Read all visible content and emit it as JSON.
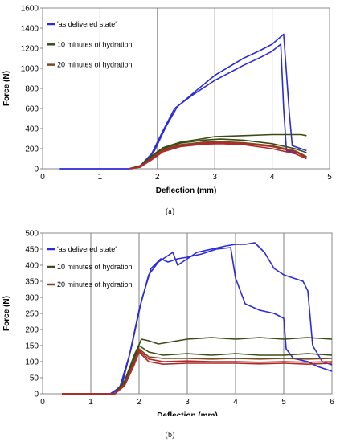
{
  "chart_data": [
    {
      "type": "line",
      "caption": "(a)",
      "xlabel": "Deflection (mm)",
      "ylabel": "Force (N)",
      "xlim": [
        0,
        5
      ],
      "ylim": [
        0,
        1600
      ],
      "xticks": [
        "0",
        "1",
        "2",
        "3",
        "4",
        "5"
      ],
      "yticks": [
        "0",
        "200",
        "400",
        "600",
        "800",
        "1000",
        "1200",
        "1400",
        "1600"
      ],
      "grid": "vertical",
      "legend_position": "top-left",
      "legend": [
        {
          "label": "'as delivered state'",
          "color": "#2b2bd9"
        },
        {
          "label": "10 minutes of hydration",
          "color": "#3a4d14"
        },
        {
          "label": "20 minutes of hydration",
          "color": "#7a4a1f"
        }
      ],
      "series": [
        {
          "color": "#2b2bd9",
          "points": [
            [
              0.3,
              0
            ],
            [
              1.5,
              0
            ],
            [
              1.7,
              30
            ],
            [
              1.9,
              150
            ],
            [
              2.1,
              380
            ],
            [
              2.3,
              600
            ],
            [
              2.6,
              730
            ],
            [
              3.0,
              880
            ],
            [
              3.5,
              1030
            ],
            [
              3.8,
              1110
            ],
            [
              4.0,
              1170
            ],
            [
              4.15,
              1240
            ],
            [
              4.2,
              600
            ],
            [
              4.25,
              180
            ],
            [
              4.5,
              150
            ],
            [
              4.6,
              120
            ]
          ]
        },
        {
          "color": "#2b2bd9",
          "points": [
            [
              0.3,
              0
            ],
            [
              1.55,
              0
            ],
            [
              1.75,
              40
            ],
            [
              1.95,
              180
            ],
            [
              2.15,
              420
            ],
            [
              2.35,
              620
            ],
            [
              2.7,
              790
            ],
            [
              3.0,
              930
            ],
            [
              3.5,
              1100
            ],
            [
              3.8,
              1180
            ],
            [
              4.0,
              1240
            ],
            [
              4.2,
              1340
            ],
            [
              4.3,
              550
            ],
            [
              4.35,
              230
            ],
            [
              4.5,
              200
            ],
            [
              4.6,
              180
            ]
          ]
        },
        {
          "color": "#3a4d14",
          "points": [
            [
              1.5,
              0
            ],
            [
              1.7,
              30
            ],
            [
              1.9,
              130
            ],
            [
              2.1,
              210
            ],
            [
              2.4,
              265
            ],
            [
              2.8,
              300
            ],
            [
              3.0,
              320
            ],
            [
              3.5,
              330
            ],
            [
              4.0,
              340
            ],
            [
              4.5,
              340
            ],
            [
              4.6,
              330
            ]
          ]
        },
        {
          "color": "#3a4d14",
          "points": [
            [
              1.5,
              0
            ],
            [
              1.7,
              25
            ],
            [
              1.9,
              120
            ],
            [
              2.1,
              200
            ],
            [
              2.4,
              255
            ],
            [
              2.8,
              285
            ],
            [
              3.1,
              295
            ],
            [
              3.5,
              285
            ],
            [
              4.0,
              250
            ],
            [
              4.4,
              200
            ],
            [
              4.6,
              160
            ]
          ]
        },
        {
          "color": "#7a4a1f",
          "points": [
            [
              1.5,
              0
            ],
            [
              1.7,
              20
            ],
            [
              1.9,
              110
            ],
            [
              2.1,
              190
            ],
            [
              2.4,
              240
            ],
            [
              2.8,
              265
            ],
            [
              3.1,
              270
            ],
            [
              3.5,
              260
            ],
            [
              4.0,
              230
            ],
            [
              4.4,
              180
            ],
            [
              4.6,
              120
            ]
          ]
        },
        {
          "color": "#b02a2a",
          "points": [
            [
              1.5,
              0
            ],
            [
              1.7,
              15
            ],
            [
              1.9,
              90
            ],
            [
              2.1,
              170
            ],
            [
              2.4,
              220
            ],
            [
              2.8,
              245
            ],
            [
              3.1,
              250
            ],
            [
              3.5,
              240
            ],
            [
              4.0,
              200
            ],
            [
              4.4,
              150
            ],
            [
              4.6,
              100
            ]
          ]
        },
        {
          "color": "#b02a2a",
          "points": [
            [
              1.5,
              0
            ],
            [
              1.7,
              20
            ],
            [
              1.9,
              100
            ],
            [
              2.1,
              180
            ],
            [
              2.4,
              230
            ],
            [
              2.8,
              255
            ],
            [
              3.1,
              260
            ],
            [
              3.5,
              250
            ],
            [
              4.0,
              220
            ],
            [
              4.4,
              170
            ],
            [
              4.6,
              110
            ]
          ]
        }
      ]
    },
    {
      "type": "line",
      "caption": "(b)",
      "xlabel": "Deflection (mm)",
      "ylabel": "Force (N)",
      "xlim": [
        0,
        6
      ],
      "ylim": [
        0,
        500
      ],
      "xticks": [
        "0",
        "1",
        "2",
        "3",
        "4",
        "5",
        "6"
      ],
      "yticks": [
        "0",
        "50",
        "100",
        "150",
        "200",
        "250",
        "300",
        "350",
        "400",
        "450",
        "500"
      ],
      "grid": "vertical",
      "legend_position": "top-left",
      "legend": [
        {
          "label": "'as delivered state'",
          "color": "#2b2bd9"
        },
        {
          "label": "10 minutes of hydration",
          "color": "#3a4d14"
        },
        {
          "label": "20 minutes of hydration",
          "color": "#7a4a1f"
        }
      ],
      "series": [
        {
          "color": "#2b2bd9",
          "points": [
            [
              0.4,
              0
            ],
            [
              1.4,
              0
            ],
            [
              1.6,
              20
            ],
            [
              1.8,
              120
            ],
            [
              2.0,
              260
            ],
            [
              2.2,
              370
            ],
            [
              2.4,
              410
            ],
            [
              2.6,
              430
            ],
            [
              2.7,
              440
            ],
            [
              2.8,
              400
            ],
            [
              3.0,
              420
            ],
            [
              3.2,
              440
            ],
            [
              3.5,
              450
            ],
            [
              3.8,
              460
            ],
            [
              4.0,
              465
            ],
            [
              4.2,
              465
            ],
            [
              4.4,
              470
            ],
            [
              4.6,
              440
            ],
            [
              4.8,
              390
            ],
            [
              5.0,
              370
            ],
            [
              5.2,
              360
            ],
            [
              5.4,
              350
            ],
            [
              5.5,
              320
            ],
            [
              5.6,
              150
            ],
            [
              5.8,
              100
            ],
            [
              6.0,
              90
            ]
          ]
        },
        {
          "color": "#2b2bd9",
          "points": [
            [
              0.4,
              0
            ],
            [
              1.45,
              0
            ],
            [
              1.65,
              30
            ],
            [
              1.85,
              150
            ],
            [
              2.05,
              290
            ],
            [
              2.25,
              390
            ],
            [
              2.45,
              420
            ],
            [
              2.6,
              410
            ],
            [
              2.8,
              420
            ],
            [
              3.0,
              425
            ],
            [
              3.3,
              435
            ],
            [
              3.6,
              450
            ],
            [
              3.9,
              455
            ],
            [
              4.0,
              360
            ],
            [
              4.2,
              280
            ],
            [
              4.5,
              260
            ],
            [
              4.8,
              250
            ],
            [
              5.0,
              235
            ],
            [
              5.05,
              140
            ],
            [
              5.2,
              110
            ],
            [
              5.5,
              100
            ],
            [
              5.7,
              85
            ],
            [
              6.0,
              70
            ]
          ]
        },
        {
          "color": "#3a4d14",
          "points": [
            [
              0.4,
              0
            ],
            [
              1.5,
              0
            ],
            [
              1.7,
              40
            ],
            [
              1.9,
              120
            ],
            [
              2.05,
              170
            ],
            [
              2.2,
              165
            ],
            [
              2.4,
              155
            ],
            [
              2.6,
              160
            ],
            [
              3.0,
              170
            ],
            [
              3.5,
              175
            ],
            [
              4.0,
              170
            ],
            [
              4.5,
              175
            ],
            [
              5.0,
              170
            ],
            [
              5.5,
              175
            ],
            [
              6.0,
              170
            ]
          ]
        },
        {
          "color": "#3a4d14",
          "points": [
            [
              0.4,
              0
            ],
            [
              1.5,
              0
            ],
            [
              1.7,
              35
            ],
            [
              1.9,
              110
            ],
            [
              2.0,
              150
            ],
            [
              2.2,
              130
            ],
            [
              2.5,
              120
            ],
            [
              3.0,
              125
            ],
            [
              3.5,
              120
            ],
            [
              4.0,
              125
            ],
            [
              4.5,
              120
            ],
            [
              5.0,
              120
            ],
            [
              5.5,
              125
            ],
            [
              6.0,
              120
            ]
          ]
        },
        {
          "color": "#7a4a1f",
          "points": [
            [
              0.4,
              0
            ],
            [
              1.5,
              0
            ],
            [
              1.7,
              30
            ],
            [
              1.9,
              100
            ],
            [
              2.0,
              140
            ],
            [
              2.2,
              115
            ],
            [
              2.5,
              110
            ],
            [
              3.0,
              110
            ],
            [
              3.5,
              108
            ],
            [
              4.0,
              110
            ],
            [
              4.5,
              108
            ],
            [
              5.0,
              110
            ],
            [
              5.5,
              108
            ],
            [
              6.0,
              110
            ]
          ]
        },
        {
          "color": "#b02a2a",
          "points": [
            [
              0.4,
              0
            ],
            [
              1.5,
              0
            ],
            [
              1.7,
              25
            ],
            [
              1.9,
              90
            ],
            [
              2.0,
              130
            ],
            [
              2.2,
              100
            ],
            [
              2.5,
              92
            ],
            [
              3.0,
              95
            ],
            [
              3.5,
              95
            ],
            [
              4.0,
              95
            ],
            [
              4.5,
              93
            ],
            [
              5.0,
              95
            ],
            [
              5.5,
              92
            ],
            [
              6.0,
              95
            ]
          ]
        },
        {
          "color": "#b02a2a",
          "points": [
            [
              0.4,
              0
            ],
            [
              1.5,
              0
            ],
            [
              1.7,
              28
            ],
            [
              1.9,
              95
            ],
            [
              2.0,
              135
            ],
            [
              2.2,
              108
            ],
            [
              2.5,
              100
            ],
            [
              3.0,
              102
            ],
            [
              3.5,
              100
            ],
            [
              4.0,
              100
            ],
            [
              4.5,
              98
            ],
            [
              5.0,
              100
            ],
            [
              5.5,
              98
            ],
            [
              6.0,
              100
            ]
          ]
        }
      ]
    }
  ]
}
